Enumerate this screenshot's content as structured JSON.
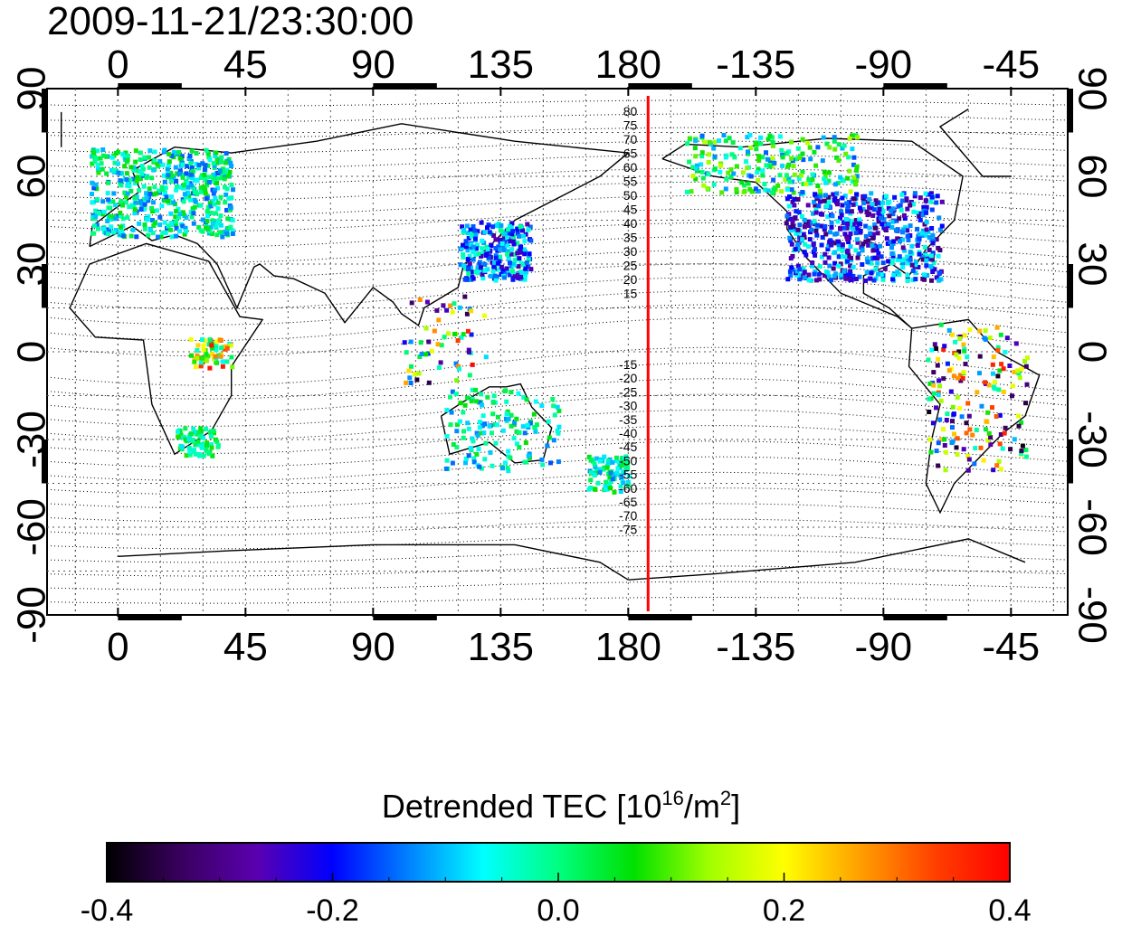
{
  "timestamp": "2009-11-21/23:30:00",
  "map": {
    "projection": "equirectangular",
    "lon_center": 180,
    "lat_range": [
      -90,
      90
    ],
    "lon_ticks": [
      "0",
      "45",
      "90",
      "135",
      "180",
      "-135",
      "-90",
      "-45"
    ],
    "lat_ticks": [
      "90",
      "60",
      "30",
      "0",
      "-30",
      "-60",
      "-90"
    ],
    "grid": true,
    "coastlines": "black",
    "terminator_line": {
      "color": "#ff0000",
      "lon": -173
    },
    "contour_labels_north": [
      "80",
      "75",
      "70",
      "65",
      "60",
      "55",
      "50",
      "45",
      "40",
      "35",
      "30",
      "25",
      "20",
      "15"
    ],
    "contour_labels_south": [
      "-15",
      "-20",
      "-25",
      "-30",
      "-35",
      "-40",
      "-45",
      "-50",
      "-55",
      "-60",
      "-65",
      "-70",
      "-75"
    ]
  },
  "colorbar": {
    "title_prefix": "Detrended TEC  [10",
    "title_exp1": "16",
    "title_mid": "/m",
    "title_exp2": "2",
    "title_suffix": "]",
    "tick_labels": [
      "-0.4",
      "-0.2",
      "0.0",
      "0.2",
      "0.4"
    ],
    "range": [
      -0.4,
      0.4
    ],
    "colors": [
      "#000000",
      "#3a0060",
      "#5a00b0",
      "#0000ff",
      "#0080ff",
      "#00ffff",
      "#00ff80",
      "#00e000",
      "#a0ff00",
      "#ffff00",
      "#ffa000",
      "#ff4000",
      "#ff0000"
    ]
  }
}
